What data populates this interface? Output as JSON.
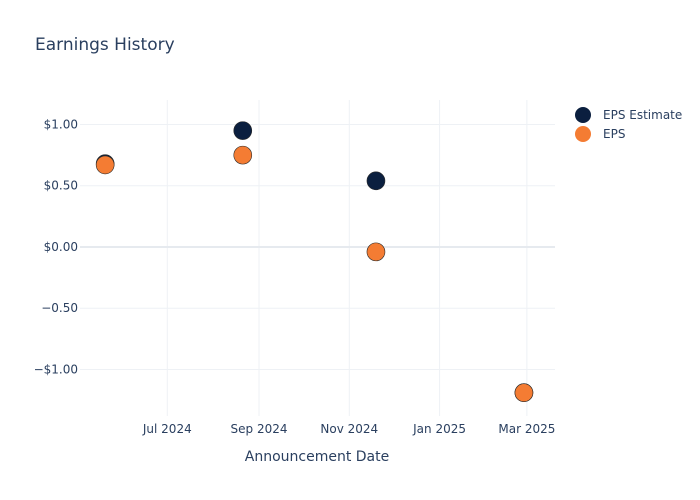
{
  "chart_data": {
    "type": "scatter",
    "title": "Earnings History",
    "xlabel": "Announcement Date",
    "ylabel": "",
    "x_ticks": [
      "Jul 2024",
      "Sep 2024",
      "Nov 2024",
      "Jan 2025",
      "Mar 2025"
    ],
    "y_ticks": [
      "$1.00",
      "$0.50",
      "$0.00",
      "−0.50",
      "−$1.00"
    ],
    "ylim": [
      -1.38,
      1.2
    ],
    "xlim": [
      "2024-05-03",
      "2025-03-20"
    ],
    "grid": true,
    "legend_position": "top-right",
    "series": [
      {
        "name": "EPS Estimate",
        "color": "#0b1f3f",
        "x": [
          "2024-05-20",
          "2024-08-21",
          "2024-11-19",
          "2025-02-27"
        ],
        "y": [
          0.68,
          0.95,
          0.54,
          -1.19
        ]
      },
      {
        "name": "EPS",
        "color": "#f47c33",
        "x": [
          "2024-05-20",
          "2024-08-21",
          "2024-11-19",
          "2025-02-27"
        ],
        "y": [
          0.67,
          0.75,
          -0.04,
          -1.19
        ]
      }
    ]
  }
}
